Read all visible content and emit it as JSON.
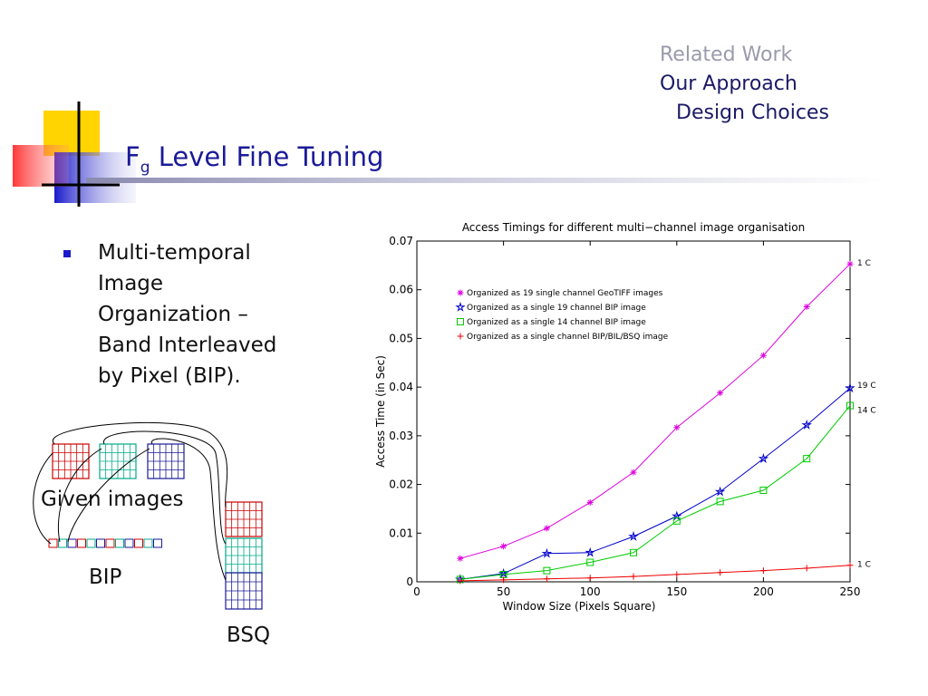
{
  "nav": {
    "related": "Related Work",
    "approach": "Our Approach",
    "design": "Design Choices"
  },
  "slide": {
    "title_main": "F",
    "title_sub": "g",
    "title_rest": " Level Fine Tuning",
    "bullet": "Multi-temporal Image Organization – Band Interleaved by Pixel (BIP)."
  },
  "diagram": {
    "given_label": "Given images",
    "bip_label": "BIP",
    "bsq_label": "BSQ",
    "colors": [
      "#cc0000",
      "#00aa88",
      "#1a1a99"
    ]
  },
  "chart_data": {
    "type": "line",
    "title": "Access Timings for different multi−channel image organisation",
    "xlabel": "Window Size (Pixels Square)",
    "ylabel": "Access Time (in Sec)",
    "xlim": [
      0,
      250
    ],
    "ylim": [
      0,
      0.07
    ],
    "xticks": [
      "0",
      "50",
      "100",
      "150",
      "200",
      "250"
    ],
    "yticks": [
      "0",
      "0.01",
      "0.02",
      "0.03",
      "0.04",
      "0.05",
      "0.06",
      "0.07"
    ],
    "legend_position": "top-left",
    "x": [
      25,
      50,
      75,
      100,
      125,
      150,
      175,
      200,
      225,
      250
    ],
    "series": [
      {
        "name": "Organized as 19 single channel GeoTIFF images",
        "color": "#dd00dd",
        "marker": "star",
        "end_label": "1 C",
        "values": [
          0.0048,
          0.0073,
          0.011,
          0.0163,
          0.0225,
          0.0317,
          0.0388,
          0.0465,
          0.0565,
          0.0653
        ]
      },
      {
        "name": "Organized as a single 19 channel BIP image",
        "color": "#0000cc",
        "marker": "hexstar",
        "end_label": "19 C",
        "values": [
          0.0005,
          0.0017,
          0.0058,
          0.006,
          0.0093,
          0.0135,
          0.0185,
          0.0253,
          0.0322,
          0.0398
        ]
      },
      {
        "name": "Organized as a single 14 channel BIP image",
        "color": "#00cc00",
        "marker": "square",
        "end_label": "14 C",
        "values": [
          0.0005,
          0.0015,
          0.0023,
          0.004,
          0.006,
          0.0125,
          0.0165,
          0.0188,
          0.0253,
          0.0362
        ]
      },
      {
        "name": "Organized as a single channel BIP/BIL/BSQ image",
        "color": "#ee0000",
        "marker": "plus",
        "end_label": "1 C",
        "values": [
          0.0002,
          0.0004,
          0.0006,
          0.0008,
          0.0011,
          0.0015,
          0.0019,
          0.0023,
          0.0028,
          0.0034
        ]
      }
    ]
  }
}
